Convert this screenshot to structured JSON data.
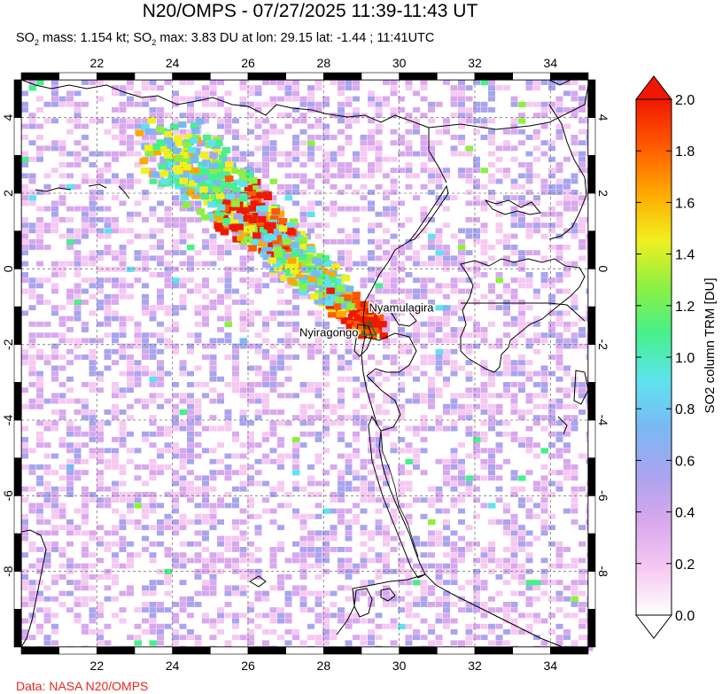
{
  "header": {
    "title": "N20/OMPS - 07/27/2025 11:39-11:43 UT",
    "subtitle_parts": [
      "SO",
      "2",
      " mass: 1.154 kt; SO",
      "2",
      " max: 3.83 DU at lon: 29.15 lat: -1.44 ; 11:41UTC"
    ]
  },
  "credit": "Data: NASA N20/OMPS",
  "map": {
    "lon_range": [
      20,
      35
    ],
    "lat_range": [
      -10,
      5
    ],
    "x_ticks": [
      "22",
      "24",
      "26",
      "28",
      "30",
      "32",
      "34"
    ],
    "x_tick_values": [
      22,
      24,
      26,
      28,
      30,
      32,
      34
    ],
    "y_ticks": [
      "4",
      "2",
      "0",
      "-2",
      "-4",
      "-6",
      "-8"
    ],
    "y_tick_values": [
      4,
      2,
      0,
      -2,
      -4,
      -6,
      -8
    ],
    "grid": "dashed",
    "volcanoes": [
      {
        "name": "Nyamulagira",
        "lon": 29.2,
        "lat": -1.41
      },
      {
        "name": "Nyiragongo",
        "lon": 29.25,
        "lat": -1.52
      }
    ],
    "plume_max": {
      "lon": 29.15,
      "lat": -1.44,
      "value": 3.83
    }
  },
  "colorbar": {
    "label": "SO2 column TRM [DU]",
    "tick_labels": [
      "2.0",
      "1.8",
      "1.6",
      "1.4",
      "1.2",
      "1.0",
      "0.8",
      "0.6",
      "0.4",
      "0.2",
      "0.0"
    ],
    "tick_values": [
      2.0,
      1.8,
      1.6,
      1.4,
      1.2,
      1.0,
      0.8,
      0.6,
      0.4,
      0.2,
      0.0
    ],
    "min": 0.0,
    "max": 2.0,
    "colors": [
      "#ffffff",
      "#f6c8f2",
      "#d8a8ee",
      "#a9a4ee",
      "#7ab8f4",
      "#5ee3ee",
      "#46f08c",
      "#8cf042",
      "#f0f020",
      "#ffa800",
      "#ff5a00",
      "#f01800"
    ]
  }
}
